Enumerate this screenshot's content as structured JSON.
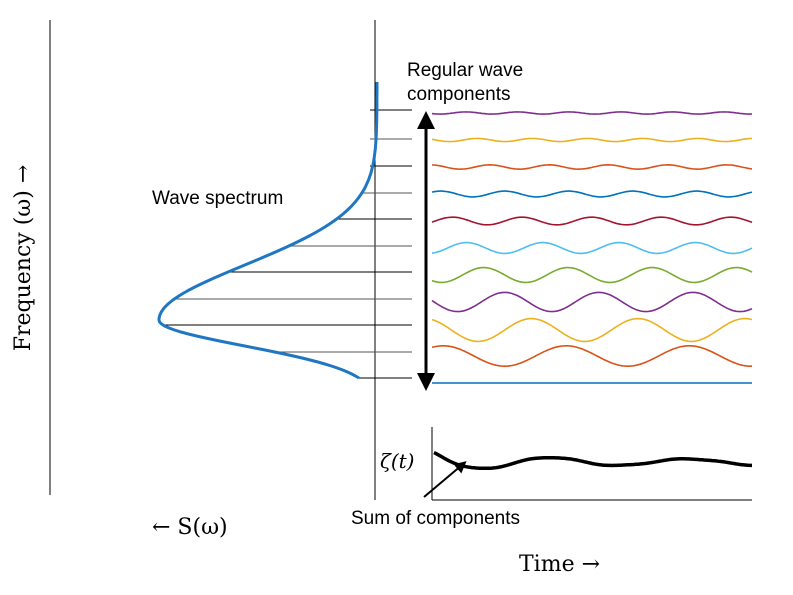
{
  "labels": {
    "regular_wave_line1": "Regular wave",
    "regular_wave_line2": "components",
    "wave_spectrum": "Wave spectrum",
    "sum_of_components": "Sum of components",
    "y_axis": "Frequency (ω)  →",
    "spectrum_axis": "←  S(ω)",
    "time_axis": "Time →",
    "zeta": "ζ(t)"
  },
  "colors": {
    "spectrum": "#1f77c4",
    "components": [
      "#0072bd",
      "#d95319",
      "#edb120",
      "#7e2f8e",
      "#77ac30",
      "#4dbeee",
      "#a2142f",
      "#0072bd",
      "#d95319",
      "#edb120",
      "#7e2f8e"
    ],
    "sum": "#000000",
    "axis": "#000000"
  },
  "components": [
    {
      "amplitude": 0.0,
      "cycles": 0
    },
    {
      "amplitude": 0.85,
      "cycles": 2.6
    },
    {
      "amplitude": 0.95,
      "cycles": 3.0
    },
    {
      "amplitude": 0.8,
      "cycles": 3.4
    },
    {
      "amplitude": 0.62,
      "cycles": 3.8
    },
    {
      "amplitude": 0.45,
      "cycles": 4.2
    },
    {
      "amplitude": 0.32,
      "cycles": 4.6
    },
    {
      "amplitude": 0.24,
      "cycles": 5.0
    },
    {
      "amplitude": 0.18,
      "cycles": 5.4
    },
    {
      "amplitude": 0.13,
      "cycles": 5.8
    },
    {
      "amplitude": 0.09,
      "cycles": 6.2
    }
  ]
}
